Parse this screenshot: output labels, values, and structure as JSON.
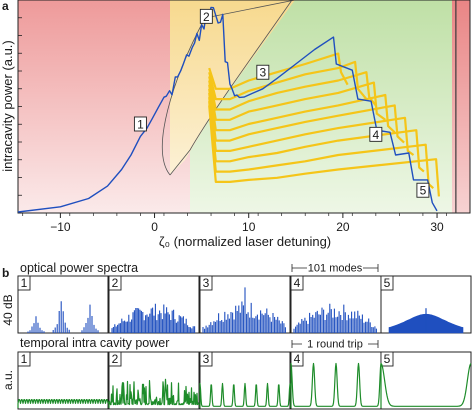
{
  "panel_a_letter": "a",
  "panel_b_letter": "b",
  "colors": {
    "blue": "#1f4fbf",
    "yellow": "#f5c518",
    "green": "#1e8c2a",
    "red_region": "#ee9a9a",
    "orange_region": "#f7e0a6",
    "green_region": "#bfe0a6",
    "separator": "#3a3a3a"
  },
  "chart_data": [
    {
      "type": "line",
      "panel": "a",
      "xlabel": "ζ₀ (normalized laser detuning)",
      "ylabel": "intracavity power (a.u.)",
      "xlim": [
        -14.5,
        33.5
      ],
      "ylim": [
        0,
        1
      ],
      "x_ticks": [
        -10,
        0,
        10,
        20,
        30
      ],
      "x_tick_labels": [
        "−10",
        "0",
        "10",
        "20",
        "30"
      ],
      "regions": [
        "red",
        "orange",
        "green",
        "red"
      ],
      "separator_x": 32,
      "grid": false,
      "series": [
        {
          "color": "blue",
          "x": [
            -14.5,
            -10,
            -7,
            -5,
            -3.5,
            -2.5,
            -1.5,
            -0.8,
            -0.2,
            0.4,
            1.0,
            1.6,
            2.2,
            2.8,
            3.4,
            4.0,
            4.5,
            5.0,
            5.5,
            6.0,
            6.5,
            7.0,
            7.5,
            8.0,
            8.5,
            9.0,
            9.5,
            10.5,
            11.5,
            13,
            15,
            17,
            19,
            19.3,
            21,
            21.6,
            23,
            23.6,
            25,
            25.6,
            27,
            27.5,
            29,
            29.5,
            30
          ],
          "y": [
            0.005,
            0.03,
            0.07,
            0.13,
            0.21,
            0.28,
            0.37,
            0.41,
            0.46,
            0.51,
            0.56,
            0.61,
            0.66,
            0.71,
            0.76,
            0.81,
            0.86,
            0.91,
            0.96,
            0.99,
            0.97,
            0.9,
            0.75,
            0.6,
            0.57,
            0.55,
            0.56,
            0.58,
            0.6,
            0.65,
            0.72,
            0.79,
            0.85,
            0.72,
            0.69,
            0.55,
            0.54,
            0.4,
            0.39,
            0.28,
            0.29,
            0.16,
            0.16,
            0.05,
            0.01
          ]
        },
        {
          "color": "yellow",
          "step_label": "",
          "x": [
            5.8,
            6.5,
            8,
            10,
            13,
            16,
            19.5,
            19.8,
            20.5
          ],
          "y": [
            0.7,
            0.6,
            0.6,
            0.64,
            0.68,
            0.72,
            0.77,
            0.68,
            0.62
          ]
        },
        {
          "color": "yellow",
          "x": [
            5.8,
            6.5,
            8,
            10,
            13,
            16,
            19.5,
            21.3,
            21.6,
            22.5
          ],
          "y": [
            0.68,
            0.55,
            0.55,
            0.59,
            0.63,
            0.67,
            0.7,
            0.73,
            0.6,
            0.55
          ]
        },
        {
          "color": "yellow",
          "x": [
            5.8,
            6.5,
            8,
            10,
            13,
            16,
            19.5,
            22.5,
            22.8,
            23.5
          ],
          "y": [
            0.66,
            0.5,
            0.5,
            0.54,
            0.58,
            0.61,
            0.64,
            0.68,
            0.56,
            0.52
          ]
        },
        {
          "color": "yellow",
          "x": [
            5.8,
            6.5,
            8,
            10,
            13,
            16,
            19.5,
            23.3,
            23.6,
            24.5
          ],
          "y": [
            0.64,
            0.45,
            0.45,
            0.49,
            0.52,
            0.55,
            0.58,
            0.63,
            0.48,
            0.45
          ]
        },
        {
          "color": "yellow",
          "x": [
            5.8,
            6.5,
            8,
            10,
            13,
            16,
            19.5,
            24.5,
            24.8,
            25.5
          ],
          "y": [
            0.62,
            0.4,
            0.4,
            0.43,
            0.46,
            0.49,
            0.52,
            0.57,
            0.42,
            0.39
          ]
        },
        {
          "color": "yellow",
          "x": [
            5.8,
            6.5,
            8,
            10,
            13,
            16,
            19.5,
            25.5,
            25.8,
            26.5
          ],
          "y": [
            0.6,
            0.35,
            0.35,
            0.38,
            0.41,
            0.44,
            0.47,
            0.52,
            0.37,
            0.34
          ]
        },
        {
          "color": "yellow",
          "x": [
            5.8,
            6.5,
            8,
            10,
            13,
            16,
            19.5,
            26.6,
            26.9,
            27.5
          ],
          "y": [
            0.58,
            0.3,
            0.3,
            0.32,
            0.35,
            0.38,
            0.41,
            0.46,
            0.3,
            0.28
          ]
        },
        {
          "color": "yellow",
          "x": [
            5.8,
            6.5,
            8,
            10,
            13,
            16,
            19.5,
            27.8,
            28.1,
            28.6
          ],
          "y": [
            0.56,
            0.25,
            0.25,
            0.27,
            0.29,
            0.32,
            0.35,
            0.4,
            0.22,
            0.2
          ]
        },
        {
          "color": "yellow",
          "x": [
            5.8,
            6.5,
            8,
            10,
            13,
            16,
            19.5,
            28.8,
            29.1,
            29.6
          ],
          "y": [
            0.54,
            0.2,
            0.2,
            0.21,
            0.23,
            0.25,
            0.28,
            0.33,
            0.14,
            0.12
          ]
        },
        {
          "color": "yellow",
          "x": [
            5.8,
            6.5,
            8,
            10,
            13,
            16,
            19.5,
            29.9,
            30.2
          ],
          "y": [
            0.52,
            0.15,
            0.15,
            0.16,
            0.17,
            0.19,
            0.21,
            0.26,
            0.08
          ]
        }
      ],
      "state_markers": [
        {
          "label": "1",
          "x": -1.5,
          "y": 0.43
        },
        {
          "label": "2",
          "x": 5.5,
          "y": 0.95
        },
        {
          "label": "3",
          "x": 11.5,
          "y": 0.68
        },
        {
          "label": "4",
          "x": 23.5,
          "y": 0.38
        },
        {
          "label": "5",
          "x": 28.5,
          "y": 0.11
        }
      ]
    },
    {
      "type": "bar",
      "panel": "b",
      "title": "optical power spectra",
      "ylabel": "40 dB",
      "span_label": "101 modes",
      "span_panel": "4",
      "color": "blue",
      "panels": [
        {
          "label": "1",
          "kind": "few_lines",
          "centers": [
            0.2,
            0.48,
            0.8
          ],
          "heights": [
            0.38,
            0.72,
            0.65
          ]
        },
        {
          "label": "2",
          "kind": "chaotic_comb",
          "level": 0.5
        },
        {
          "label": "3",
          "kind": "breather_comb",
          "level": 0.55
        },
        {
          "label": "4",
          "kind": "multi_soliton_comb",
          "level": 0.5
        },
        {
          "label": "5",
          "kind": "single_soliton_envelope",
          "level": 0.33
        }
      ]
    },
    {
      "type": "line",
      "panel": "b",
      "title": "temporal intra cavity power",
      "ylabel": "a.u.",
      "span_label": "1 round trip",
      "span_panel": "4",
      "color": "green",
      "panels": [
        {
          "label": "1",
          "kind": "ripple",
          "pulses": 36
        },
        {
          "label": "2",
          "kind": "chaotic",
          "pulses": 0
        },
        {
          "label": "3",
          "kind": "pulse_train",
          "pulses": 8
        },
        {
          "label": "4",
          "kind": "pulses",
          "pulses": 4
        },
        {
          "label": "5",
          "kind": "pulses",
          "pulses": 1
        }
      ]
    }
  ]
}
